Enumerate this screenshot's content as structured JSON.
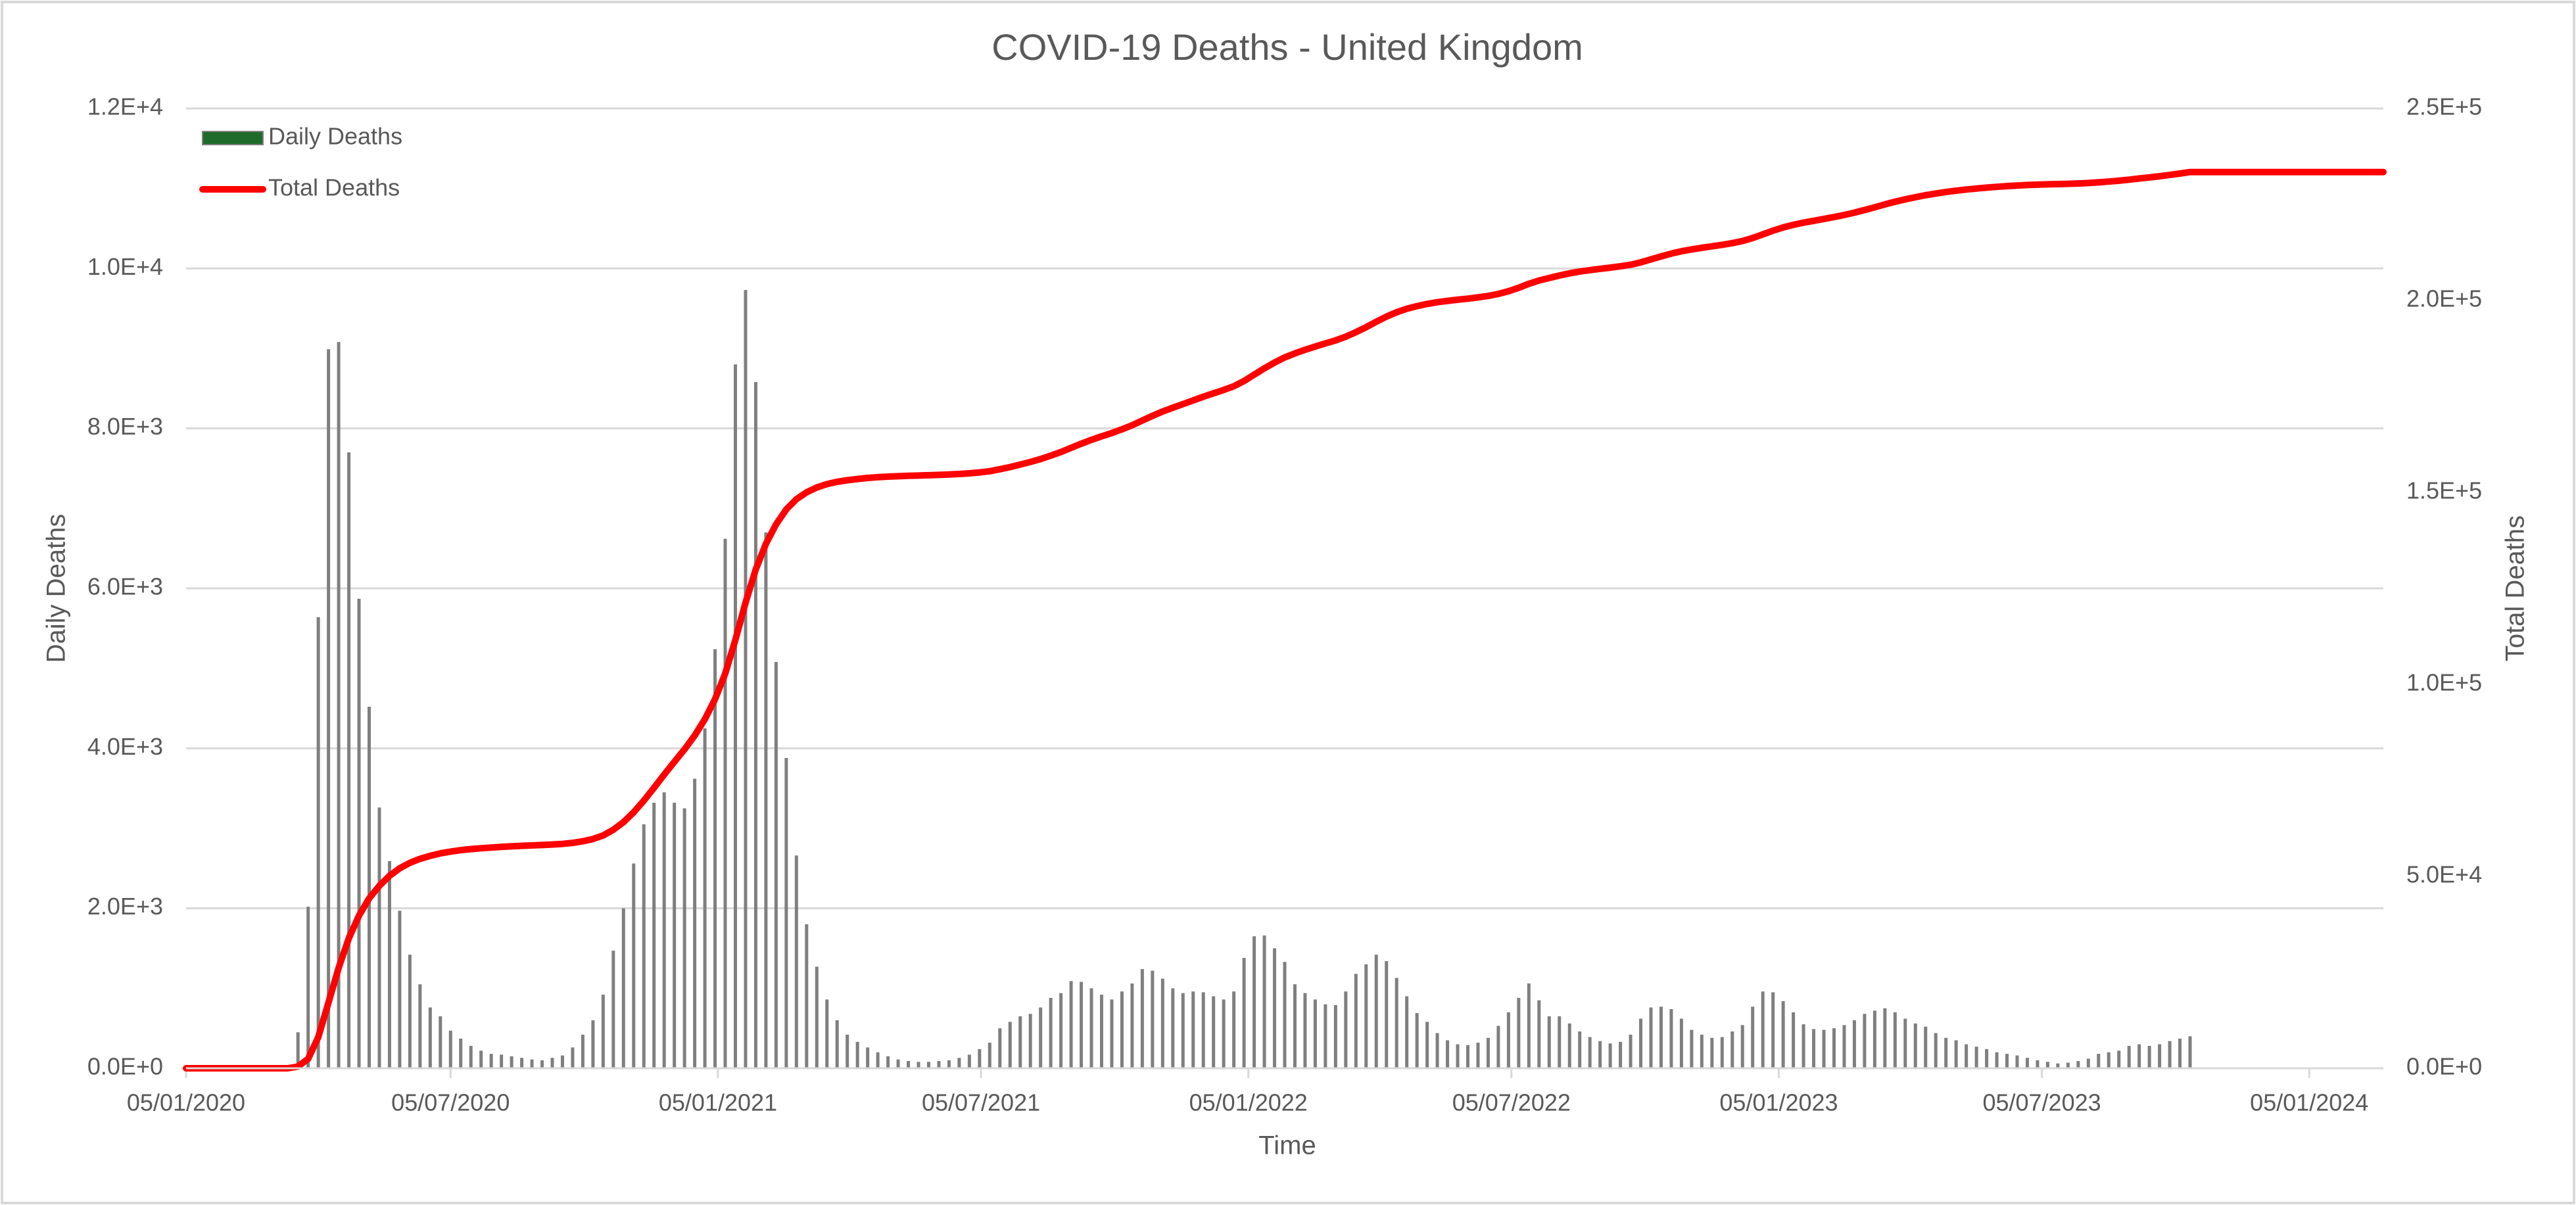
{
  "chart_data": {
    "type": "bar_line",
    "title": "COVID-19 Deaths - United Kingdom",
    "xlabel": "Time",
    "ylabel": "Daily Deaths",
    "y2label": "Total Deaths",
    "x": [
      "05/01/2020",
      "12/01/2020",
      "19/01/2020",
      "26/01/2020",
      "02/02/2020",
      "09/02/2020",
      "16/02/2020",
      "23/02/2020",
      "01/03/2020",
      "08/03/2020",
      "15/03/2020",
      "22/03/2020",
      "29/03/2020",
      "05/04/2020",
      "12/04/2020",
      "19/04/2020",
      "26/04/2020",
      "03/05/2020",
      "10/05/2020",
      "17/05/2020",
      "24/05/2020",
      "31/05/2020",
      "07/06/2020",
      "14/06/2020",
      "21/06/2020",
      "28/06/2020",
      "05/07/2020",
      "12/07/2020",
      "19/07/2020",
      "26/07/2020",
      "02/08/2020",
      "09/08/2020",
      "16/08/2020",
      "23/08/2020",
      "30/08/2020",
      "06/09/2020",
      "13/09/2020",
      "20/09/2020",
      "27/09/2020",
      "04/10/2020",
      "11/10/2020",
      "18/10/2020",
      "25/10/2020",
      "01/11/2020",
      "08/11/2020",
      "15/11/2020",
      "22/11/2020",
      "29/11/2020",
      "06/12/2020",
      "13/12/2020",
      "20/12/2020",
      "27/12/2020",
      "03/01/2021",
      "10/01/2021",
      "17/01/2021",
      "24/01/2021",
      "31/01/2021",
      "07/02/2021",
      "14/02/2021",
      "21/02/2021",
      "28/02/2021",
      "07/03/2021",
      "14/03/2021",
      "21/03/2021",
      "28/03/2021",
      "04/04/2021",
      "11/04/2021",
      "18/04/2021",
      "25/04/2021",
      "02/05/2021",
      "09/05/2021",
      "16/05/2021",
      "23/05/2021",
      "30/05/2021",
      "06/06/2021",
      "13/06/2021",
      "20/06/2021",
      "27/06/2021",
      "04/07/2021",
      "11/07/2021",
      "18/07/2021",
      "25/07/2021",
      "01/08/2021",
      "08/08/2021",
      "15/08/2021",
      "22/08/2021",
      "29/08/2021",
      "05/09/2021",
      "12/09/2021",
      "19/09/2021",
      "26/09/2021",
      "03/10/2021",
      "10/10/2021",
      "17/10/2021",
      "24/10/2021",
      "31/10/2021",
      "07/11/2021",
      "14/11/2021",
      "21/11/2021",
      "28/11/2021",
      "05/12/2021",
      "12/12/2021",
      "19/12/2021",
      "26/12/2021",
      "02/01/2022",
      "09/01/2022",
      "16/01/2022",
      "23/01/2022",
      "30/01/2022",
      "06/02/2022",
      "13/02/2022",
      "20/02/2022",
      "27/02/2022",
      "06/03/2022",
      "13/03/2022",
      "20/03/2022",
      "27/03/2022",
      "03/04/2022",
      "10/04/2022",
      "17/04/2022",
      "24/04/2022",
      "01/05/2022",
      "08/05/2022",
      "15/05/2022",
      "22/05/2022",
      "29/05/2022",
      "05/06/2022",
      "12/06/2022",
      "19/06/2022",
      "26/06/2022",
      "03/07/2022",
      "10/07/2022",
      "17/07/2022",
      "24/07/2022",
      "31/07/2022",
      "07/08/2022",
      "14/08/2022",
      "21/08/2022",
      "28/08/2022",
      "04/09/2022",
      "11/09/2022",
      "18/09/2022",
      "25/09/2022",
      "02/10/2022",
      "09/10/2022",
      "16/10/2022",
      "23/10/2022",
      "30/10/2022",
      "06/11/2022",
      "13/11/2022",
      "20/11/2022",
      "27/11/2022",
      "04/12/2022",
      "11/12/2022",
      "18/12/2022",
      "25/12/2022",
      "01/01/2023",
      "08/01/2023",
      "15/01/2023",
      "22/01/2023",
      "29/01/2023",
      "05/02/2023",
      "12/02/2023",
      "19/02/2023",
      "26/02/2023",
      "05/03/2023",
      "12/03/2023",
      "19/03/2023",
      "26/03/2023",
      "02/04/2023",
      "09/04/2023",
      "16/04/2023",
      "23/04/2023",
      "30/04/2023",
      "07/05/2023",
      "14/05/2023",
      "21/05/2023",
      "28/05/2023",
      "04/06/2023",
      "11/06/2023",
      "18/06/2023",
      "25/06/2023",
      "02/07/2023",
      "09/07/2023",
      "16/07/2023",
      "23/07/2023",
      "30/07/2023",
      "06/08/2023",
      "13/08/2023",
      "20/08/2023",
      "27/08/2023",
      "03/09/2023",
      "10/09/2023",
      "17/09/2023",
      "24/09/2023",
      "01/10/2023",
      "08/10/2023",
      "15/10/2023",
      "22/10/2023",
      "29/10/2023",
      "05/11/2023",
      "12/11/2023",
      "19/11/2023",
      "26/11/2023",
      "03/12/2023",
      "10/12/2023",
      "17/12/2023",
      "24/12/2023",
      "31/12/2023",
      "07/01/2024",
      "14/01/2024",
      "21/01/2024",
      "28/01/2024",
      "04/02/2024",
      "11/02/2024",
      "18/02/2024",
      "25/02/2024"
    ],
    "series": [
      {
        "name": "Daily Deaths",
        "type": "bar",
        "color": "#1e6b2a",
        "edgecolor": "#7f7f7f",
        "values": [
          0,
          0,
          0,
          0,
          0,
          0,
          0,
          0,
          0,
          0,
          0,
          450,
          2020,
          5640,
          8990,
          9080,
          7700,
          5870,
          4520,
          3260,
          2590,
          1970,
          1420,
          1050,
          760,
          650,
          470,
          370,
          280,
          220,
          180,
          170,
          150,
          130,
          110,
          100,
          130,
          160,
          260,
          420,
          600,
          920,
          1470,
          2000,
          2560,
          3050,
          3320,
          3450,
          3320,
          3250,
          3620,
          4250,
          5240,
          6620,
          8800,
          9730,
          8580,
          6700,
          5080,
          3880,
          2660,
          1800,
          1270,
          860,
          600,
          420,
          330,
          260,
          200,
          150,
          110,
          90,
          80,
          80,
          90,
          100,
          130,
          170,
          240,
          320,
          500,
          580,
          650,
          680,
          760,
          880,
          940,
          1090,
          1080,
          1000,
          920,
          860,
          960,
          1060,
          1240,
          1220,
          1120,
          1000,
          940,
          960,
          950,
          900,
          860,
          960,
          1380,
          1650,
          1660,
          1500,
          1330,
          1050,
          940,
          860,
          800,
          790,
          960,
          1180,
          1300,
          1420,
          1340,
          1130,
          900,
          690,
          580,
          440,
          350,
          300,
          290,
          320,
          380,
          530,
          700,
          880,
          1060,
          850,
          650,
          650,
          560,
          460,
          390,
          340,
          310,
          330,
          420,
          620,
          760,
          770,
          740,
          620,
          480,
          420,
          380,
          390,
          460,
          540,
          770,
          960,
          950,
          840,
          700,
          550,
          490,
          480,
          500,
          540,
          600,
          680,
          720,
          750,
          700,
          620,
          560,
          520,
          440,
          380,
          350,
          300,
          270,
          240,
          200,
          180,
          160,
          130,
          100,
          80,
          60,
          70,
          90,
          120,
          180,
          200,
          220,
          280,
          300,
          280,
          300,
          340,
          370,
          400,
          null,
          null,
          null,
          null,
          null,
          null,
          null,
          null,
          null,
          null,
          null,
          null,
          null,
          null,
          null,
          null,
          null,
          null,
          null
        ]
      },
      {
        "name": "Total Deaths",
        "type": "line",
        "axis": "y2",
        "color": "#ff0000",
        "values": [
          0,
          0,
          0,
          0,
          0,
          0,
          0,
          0,
          0,
          0,
          0,
          450,
          2470,
          8110,
          17100,
          26180,
          33880,
          39750,
          44270,
          47530,
          50120,
          52090,
          53510,
          54560,
          55320,
          55970,
          56440,
          56810,
          57090,
          57310,
          57490,
          57660,
          57810,
          57940,
          58050,
          58150,
          58280,
          58440,
          58700,
          59120,
          59720,
          60640,
          62110,
          64110,
          66670,
          69720,
          73040,
          76490,
          79810,
          83060,
          86680,
          90930,
          96170,
          102790,
          111590,
          121320,
          129900,
          136600,
          141680,
          145560,
          148220,
          150020,
          151290,
          152150,
          152750,
          153170,
          153500,
          153760,
          153960,
          154110,
          154220,
          154310,
          154390,
          154470,
          154560,
          154660,
          154790,
          154960,
          155200,
          155520,
          156020,
          156600,
          157250,
          157930,
          158690,
          159570,
          160510,
          161600,
          162680,
          163680,
          164600,
          165460,
          166420,
          167480,
          168720,
          169940,
          171060,
          172060,
          173000,
          173960,
          174910,
          175810,
          176670,
          177630,
          179010,
          180660,
          182320,
          183820,
          185150,
          186200,
          187140,
          188000,
          188800,
          189590,
          190550,
          191730,
          193030,
          194450,
          195790,
          196920,
          197820,
          198510,
          199090,
          199530,
          199880,
          200180,
          200470,
          200790,
          201170,
          201700,
          202400,
          203280,
          204340,
          205190,
          205840,
          206490,
          207050,
          207510,
          207900,
          208240,
          208550,
          208880,
          209300,
          209920,
          210680,
          211450,
          212190,
          212810,
          213290,
          213710,
          214090,
          214480,
          214940,
          215480,
          216250,
          217210,
          218160,
          219000,
          219700,
          220250,
          220740,
          221220,
          221720,
          222260,
          222860,
          223540,
          224260,
          225010,
          225710,
          226330,
          226890,
          227410,
          227850,
          228230,
          228580,
          228880,
          229150,
          229390,
          229590,
          229770,
          229930,
          230060,
          230160,
          230240,
          230300,
          230370,
          230460,
          230580,
          230760,
          230960,
          231180,
          231460,
          231760,
          232040,
          232340,
          232680,
          233050,
          233450,
          233450,
          233450,
          233450,
          233450,
          233450,
          233450,
          233450,
          233450,
          233450,
          233450,
          233450,
          233450,
          233450,
          233450,
          233450,
          233450,
          233450,
          233450,
          233450
        ]
      }
    ],
    "xlim": [
      "05/01/2020",
      "25/02/2024"
    ],
    "xticks": [
      "05/01/2020",
      "05/07/2020",
      "05/01/2021",
      "05/07/2021",
      "05/01/2022",
      "05/07/2022",
      "05/01/2023",
      "05/07/2023",
      "05/01/2024"
    ],
    "ylim": [
      0,
      12000
    ],
    "yticks": [
      {
        "value": 0,
        "label": "0.0E+0"
      },
      {
        "value": 2000,
        "label": "2.0E+3"
      },
      {
        "value": 4000,
        "label": "4.0E+3"
      },
      {
        "value": 6000,
        "label": "6.0E+3"
      },
      {
        "value": 8000,
        "label": "8.0E+3"
      },
      {
        "value": 10000,
        "label": "1.0E+4"
      },
      {
        "value": 12000,
        "label": "1.2E+4"
      }
    ],
    "y2lim": [
      0,
      250000
    ],
    "y2ticks": [
      {
        "value": 0,
        "label": "0.0E+0"
      },
      {
        "value": 50000,
        "label": "5.0E+4"
      },
      {
        "value": 100000,
        "label": "1.0E+5"
      },
      {
        "value": 150000,
        "label": "1.5E+5"
      },
      {
        "value": 200000,
        "label": "2.0E+5"
      },
      {
        "value": 250000,
        "label": "2.5E+5"
      }
    ],
    "grid": true,
    "legend": "upper left"
  }
}
